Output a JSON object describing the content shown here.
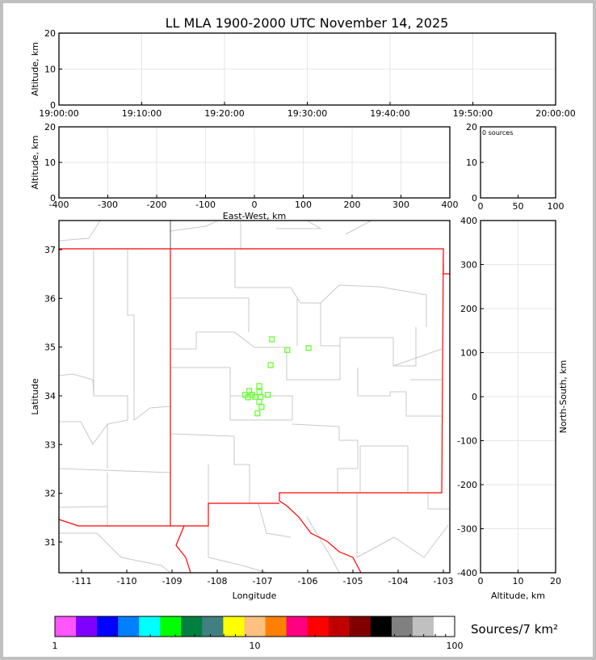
{
  "title": "LL MLA 1900-2000 UTC November 14, 2025",
  "colors": {
    "points": "#66ff33",
    "state_border": "#ff0000",
    "county": "#c8c8c8",
    "grid": "#e6e6e6"
  },
  "chart_data": [
    {
      "type": "scatter",
      "panel": "time-altitude",
      "ylabel": "Altitude, km",
      "ylim": [
        0,
        20
      ],
      "yticks": [
        "0",
        "10",
        "20"
      ],
      "xticks": [
        "19:00:00",
        "19:10:00",
        "19:20:00",
        "19:30:00",
        "19:40:00",
        "19:50:00",
        "20:00:00"
      ],
      "grid": true,
      "points": []
    },
    {
      "type": "scatter",
      "panel": "east-west-altitude",
      "xlabel": "East-West, km",
      "ylabel": "Altitude, km",
      "xlim": [
        -400,
        400
      ],
      "ylim": [
        0,
        20
      ],
      "xticks": [
        "-400",
        "-300",
        "-200",
        "-100",
        "0",
        "100",
        "200",
        "300",
        "400"
      ],
      "yticks": [
        "0",
        "10",
        "20"
      ],
      "grid": true,
      "points": []
    },
    {
      "type": "bar",
      "panel": "altitude-histogram",
      "annotation": "0 sources",
      "xlim": [
        0,
        100
      ],
      "ylim": [
        0,
        20
      ],
      "xticks": [
        "0",
        "50",
        "100"
      ],
      "yticks": [
        "0",
        "10",
        "20"
      ],
      "values": []
    },
    {
      "type": "scatter",
      "panel": "plan-view",
      "xlabel": "Longitude",
      "ylabel": "Latitude",
      "xlim": [
        -111.5,
        -102.85
      ],
      "ylim": [
        30.37,
        37.6
      ],
      "xticks": [
        "-111",
        "-110",
        "-109",
        "-108",
        "-107",
        "-106",
        "-105",
        "-104",
        "-103"
      ],
      "yticks": [
        "31",
        "32",
        "33",
        "34",
        "35",
        "36",
        "37"
      ],
      "points": [
        {
          "lon": -106.79,
          "lat": 35.16
        },
        {
          "lon": -106.45,
          "lat": 34.94
        },
        {
          "lon": -105.98,
          "lat": 34.98
        },
        {
          "lon": -106.82,
          "lat": 34.63
        },
        {
          "lon": -107.07,
          "lat": 34.2
        },
        {
          "lon": -107.29,
          "lat": 34.1
        },
        {
          "lon": -107.07,
          "lat": 34.08
        },
        {
          "lon": -107.38,
          "lat": 34.02
        },
        {
          "lon": -107.23,
          "lat": 34.02
        },
        {
          "lon": -107.32,
          "lat": 33.97
        },
        {
          "lon": -107.16,
          "lat": 33.98
        },
        {
          "lon": -107.04,
          "lat": 33.98
        },
        {
          "lon": -106.88,
          "lat": 34.02
        },
        {
          "lon": -107.07,
          "lat": 33.88
        },
        {
          "lon": -107.02,
          "lat": 33.77
        },
        {
          "lon": -107.11,
          "lat": 33.64
        }
      ]
    },
    {
      "type": "scatter",
      "panel": "altitude-north-south",
      "xlabel": "Altitude, km",
      "ylabel": "North-South, km",
      "xlim": [
        0,
        20
      ],
      "ylim": [
        -400,
        400
      ],
      "xticks": [
        "0",
        "10",
        "20"
      ],
      "yticks": [
        "-400",
        "-300",
        "-200",
        "-100",
        "0",
        "100",
        "200",
        "300",
        "400"
      ],
      "grid": true,
      "points": []
    }
  ],
  "colorbar": {
    "label": "Sources/7 km²",
    "ticks": [
      "1",
      "10",
      "100"
    ],
    "colors": [
      "#ff55ff",
      "#8000ff",
      "#0000ff",
      "#0080ff",
      "#00ffff",
      "#00ff00",
      "#008040",
      "#408080",
      "#ffff00",
      "#ffc080",
      "#ff8000",
      "#ff0080",
      "#ff0000",
      "#c00000",
      "#800000",
      "#000000",
      "#808080",
      "#c0c0c0",
      "#ffffff"
    ]
  }
}
